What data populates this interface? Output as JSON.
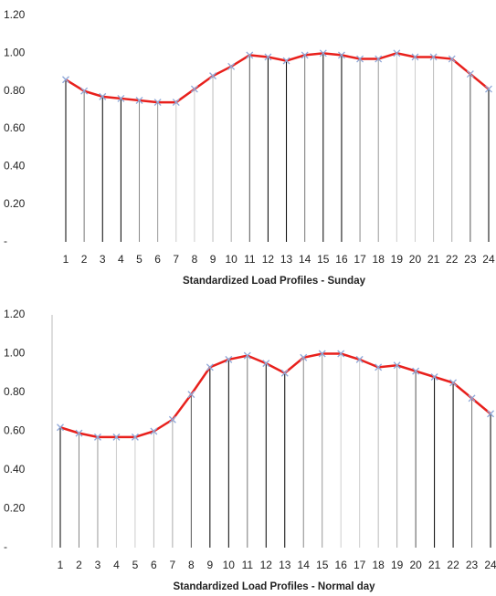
{
  "chart_data": [
    {
      "type": "line",
      "x_label": "Standardized Load Profiles - Sunday",
      "categories": [
        "1",
        "2",
        "3",
        "4",
        "5",
        "6",
        "7",
        "8",
        "9",
        "10",
        "11",
        "12",
        "13",
        "14",
        "15",
        "16",
        "17",
        "18",
        "19",
        "20",
        "21",
        "22",
        "23",
        "24"
      ],
      "values": [
        0.86,
        0.8,
        0.77,
        0.76,
        0.75,
        0.74,
        0.74,
        0.81,
        0.88,
        0.93,
        0.99,
        0.98,
        0.96,
        0.99,
        1.0,
        0.99,
        0.97,
        0.97,
        1.0,
        0.98,
        0.98,
        0.97,
        0.89,
        0.81
      ],
      "color": "#e8201c",
      "marker_color": "#8fa8d8",
      "ylim": [
        0,
        1.2
      ],
      "yticks": [
        {
          "value": 0,
          "label": "-"
        },
        {
          "value": 0.2,
          "label": "0.20"
        },
        {
          "value": 0.4,
          "label": "0.40"
        },
        {
          "value": 0.6,
          "label": "0.60"
        },
        {
          "value": 0.8,
          "label": "0.80"
        },
        {
          "value": 1.0,
          "label": "1.00"
        },
        {
          "value": 1.2,
          "label": "1.20"
        }
      ]
    },
    {
      "type": "line",
      "x_label": "Standardized Load Profiles - Normal day",
      "categories": [
        "1",
        "2",
        "3",
        "4",
        "5",
        "6",
        "7",
        "8",
        "9",
        "10",
        "11",
        "12",
        "13",
        "14",
        "15",
        "16",
        "17",
        "18",
        "19",
        "20",
        "21",
        "22",
        "23",
        "24"
      ],
      "values": [
        0.62,
        0.59,
        0.57,
        0.57,
        0.57,
        0.6,
        0.66,
        0.79,
        0.93,
        0.97,
        0.99,
        0.95,
        0.9,
        0.98,
        1.0,
        1.0,
        0.97,
        0.93,
        0.94,
        0.91,
        0.88,
        0.85,
        0.77,
        0.69
      ],
      "color": "#e8201c",
      "marker_color": "#8fa8d8",
      "ylim": [
        0,
        1.2
      ],
      "yticks": [
        {
          "value": 0,
          "label": "-"
        },
        {
          "value": 0.2,
          "label": "0.20"
        },
        {
          "value": 0.4,
          "label": "0.40"
        },
        {
          "value": 0.6,
          "label": "0.60"
        },
        {
          "value": 0.8,
          "label": "0.80"
        },
        {
          "value": 1.0,
          "label": "1.00"
        },
        {
          "value": 1.2,
          "label": "1.20"
        }
      ]
    }
  ]
}
